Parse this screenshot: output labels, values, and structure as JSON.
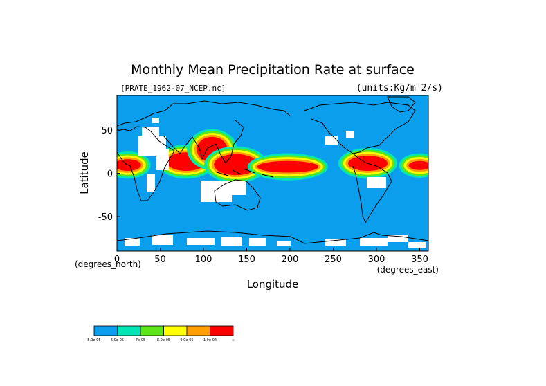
{
  "chart_data": {
    "type": "heatmap",
    "title": "Monthly Mean Precipitation Rate at surface",
    "file_label": "[PRATE_1962-07_NCEP.nc]",
    "units_label": "(units:Kg/m¯2/s)",
    "xlabel": "Longitude",
    "ylabel": "Latitude",
    "x_unit_label": "(degrees_east)",
    "y_unit_label": "(degrees_north)",
    "xlim": [
      0,
      360
    ],
    "ylim": [
      -90,
      90
    ],
    "x_ticks": [
      0,
      50,
      100,
      150,
      200,
      250,
      300,
      350
    ],
    "y_ticks": [
      -50,
      0,
      50
    ],
    "colorbar": {
      "colors": [
        "#0a9eec",
        "#00e6b4",
        "#5ee619",
        "#ffff00",
        "#ffa000",
        "#ff0000"
      ],
      "labels": [
        "5.0e-05",
        "6.0e-05",
        "7e-05",
        "8.0e-05",
        "9.0e-05",
        "1.0e-04",
        "∞"
      ]
    },
    "background_color": "#0a9eec",
    "no_data_color": "#ffffff",
    "high_precip_regions": [
      {
        "lon": [
          60,
          100
        ],
        "lat": [
          5,
          22
        ],
        "level": 5
      },
      {
        "lon": [
          95,
          125
        ],
        "lat": [
          15,
          40
        ],
        "level": 5
      },
      {
        "lon": [
          115,
          160
        ],
        "lat": [
          0,
          20
        ],
        "level": 5
      },
      {
        "lon": [
          165,
          230
        ],
        "lat": [
          3,
          12
        ],
        "level": 5
      },
      {
        "lon": [
          270,
          310
        ],
        "lat": [
          5,
          18
        ],
        "level": 5
      },
      {
        "lon": [
          0,
          25
        ],
        "lat": [
          5,
          14
        ],
        "level": 5
      },
      {
        "lon": [
          340,
          360
        ],
        "lat": [
          6,
          12
        ],
        "level": 5
      }
    ]
  }
}
